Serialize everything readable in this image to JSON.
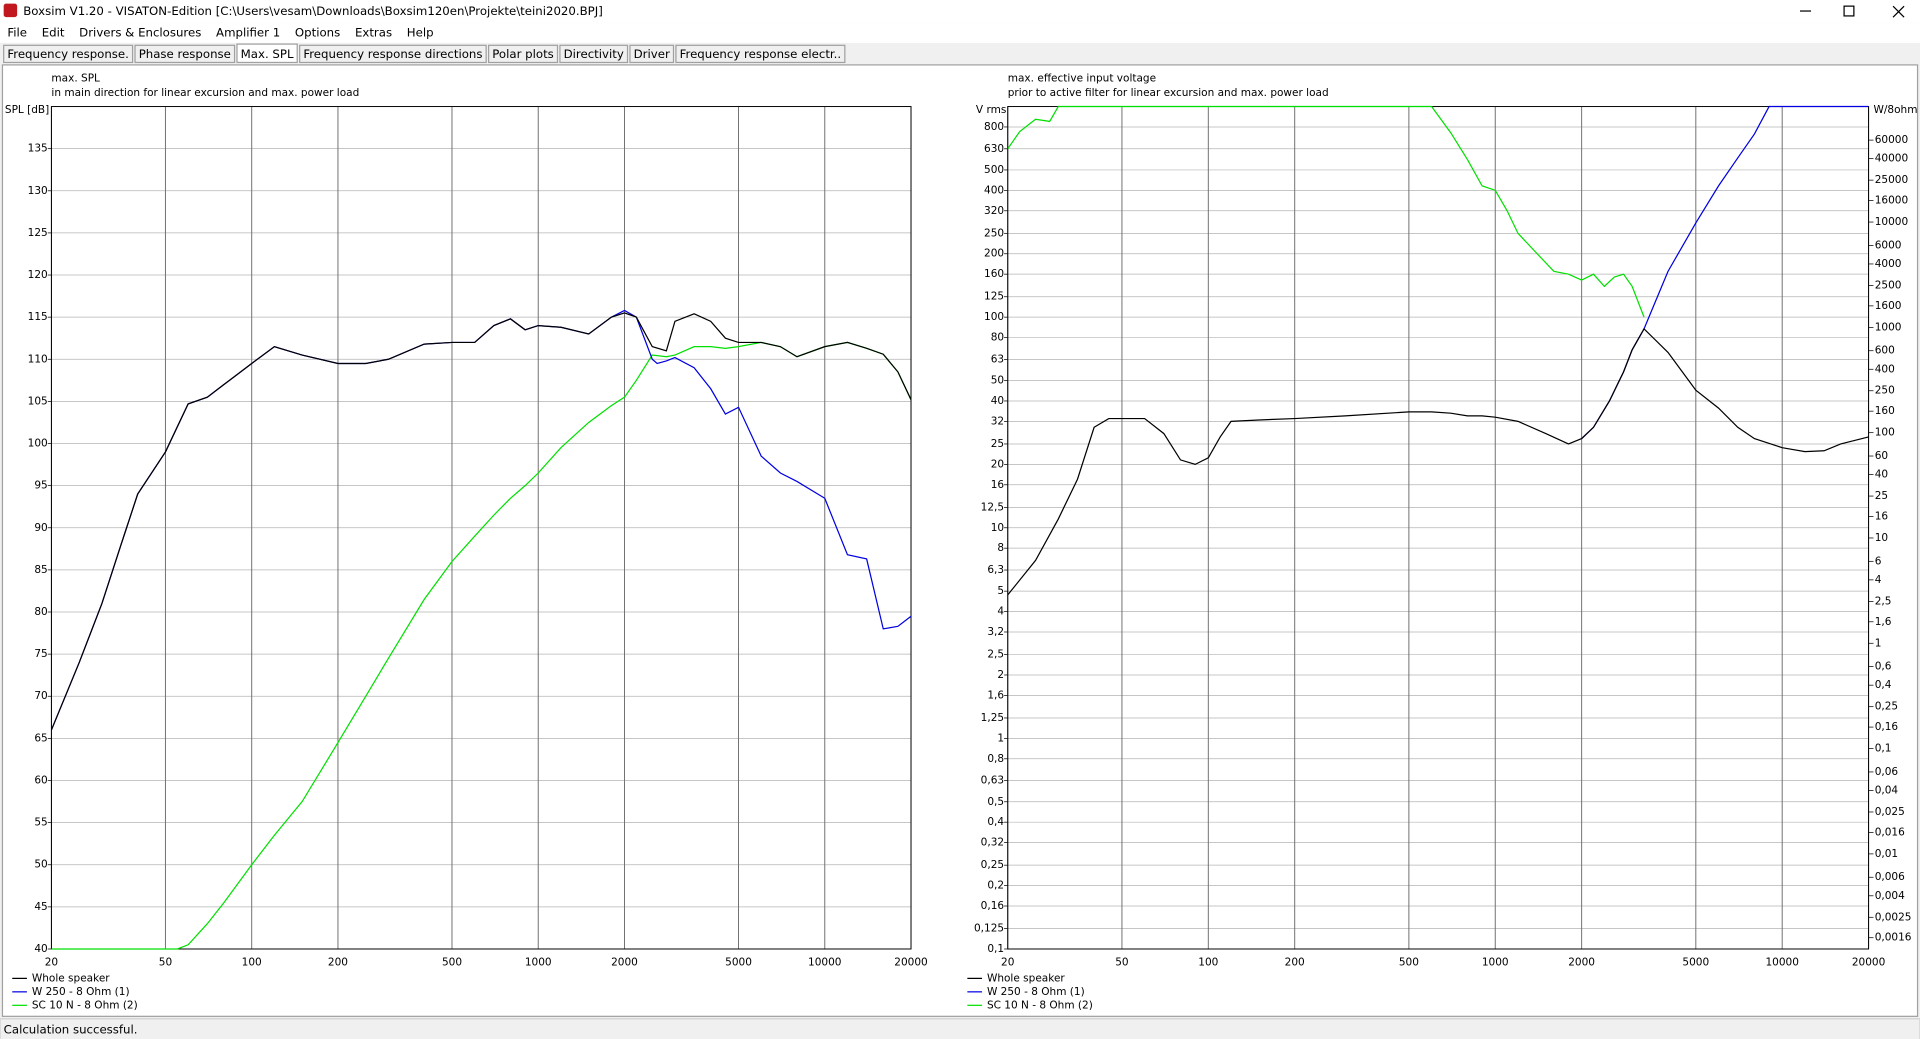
{
  "window": {
    "title": "Boxsim V1.20 - VISATON-Edition [C:\\Users\\vesam\\Downloads\\Boxsim120en\\Projekte\\teini2020.BPJ]"
  },
  "menu": [
    "File",
    "Edit",
    "Drivers & Enclosures",
    "Amplifier 1",
    "Options",
    "Extras",
    "Help"
  ],
  "tabs": [
    "Frequency response.",
    "Phase response",
    "Max. SPL",
    "Frequency response directions",
    "Polar plots",
    "Directivity",
    "Driver",
    "Frequency response electr.."
  ],
  "active_tab": 2,
  "chart_data": [
    {
      "type": "line",
      "title": "max. SPL",
      "subtitle": "in main direction for linear excursion and max. power load",
      "ylabel": "SPL [dB]",
      "xscale": "log",
      "xlim": [
        20,
        20000
      ],
      "xticks": [
        20,
        50,
        100,
        200,
        500,
        1000,
        2000,
        5000,
        10000,
        20000
      ],
      "yscale": "linear",
      "ylim": [
        40,
        140
      ],
      "yticks": [
        40,
        45,
        50,
        55,
        60,
        65,
        70,
        75,
        80,
        85,
        90,
        95,
        100,
        105,
        110,
        115,
        120,
        125,
        130,
        135
      ],
      "grid": true,
      "legend": "lower left",
      "series": [
        {
          "name": "SC 10 N - 8 Ohm (2)",
          "color": "#00e000",
          "x": [
            20,
            50,
            55,
            60,
            70,
            80,
            100,
            120,
            150,
            200,
            250,
            300,
            400,
            500,
            600,
            700,
            800,
            900,
            1000,
            1200,
            1500,
            1800,
            2000,
            2200,
            2500,
            2800,
            3000,
            3500,
            4000,
            4500,
            5000,
            6000,
            7000,
            8000,
            10000,
            12000,
            14000,
            16000,
            18000,
            20000
          ],
          "values": [
            40,
            40,
            40,
            40.5,
            43,
            45.5,
            50,
            53.5,
            57.5,
            64.5,
            70,
            74.5,
            81.5,
            86,
            89,
            91.5,
            93.5,
            95,
            96.5,
            99.5,
            102.5,
            104.5,
            105.5,
            107.5,
            110.5,
            110.3,
            110.5,
            111.5,
            111.5,
            111.3,
            111.5,
            112,
            111.5,
            110.3,
            111.5,
            112,
            111.3,
            110.6,
            108.5,
            105.2
          ]
        },
        {
          "name": "W 250 - 8 Ohm (1)",
          "color": "#0000e0",
          "x": [
            20,
            25,
            30,
            35,
            40,
            50,
            60,
            70,
            80,
            100,
            120,
            150,
            200,
            250,
            300,
            400,
            500,
            600,
            700,
            800,
            900,
            1000,
            1200,
            1500,
            1800,
            2000,
            2200,
            2500,
            2600,
            2800,
            3000,
            3500,
            4000,
            4500,
            5000,
            6000,
            7000,
            8000,
            10000,
            12000,
            14000,
            16000,
            18000,
            20000
          ],
          "values": [
            66,
            74,
            81,
            88,
            94,
            99,
            104.7,
            105.5,
            107,
            109.5,
            111.5,
            110.5,
            109.5,
            109.5,
            110,
            111.8,
            112,
            112,
            114,
            114.8,
            113.5,
            114,
            113.8,
            113,
            115,
            115.8,
            115,
            110,
            109.5,
            109.8,
            110.2,
            109,
            106.5,
            103.5,
            104.3,
            98.5,
            96.5,
            95.5,
            93.5,
            86.8,
            86.3,
            78,
            78.3,
            79.5
          ]
        },
        {
          "name": "Whole speaker",
          "color": "#000000",
          "x": [
            20,
            25,
            30,
            35,
            40,
            50,
            60,
            70,
            80,
            100,
            120,
            150,
            200,
            250,
            300,
            400,
            500,
            600,
            700,
            800,
            900,
            1000,
            1200,
            1500,
            1800,
            2000,
            2200,
            2500,
            2800,
            3000,
            3500,
            4000,
            4500,
            5000,
            6000,
            7000,
            8000,
            10000,
            12000,
            14000,
            16000,
            18000,
            20000
          ],
          "values": [
            66,
            74,
            81,
            88,
            94,
            99,
            104.7,
            105.5,
            107,
            109.5,
            111.5,
            110.5,
            109.5,
            109.5,
            110,
            111.8,
            112,
            112,
            114,
            114.8,
            113.5,
            114,
            113.8,
            113,
            115,
            115.5,
            115,
            111.5,
            111,
            114.5,
            115.4,
            114.5,
            112.5,
            112,
            112,
            111.5,
            110.3,
            111.5,
            112,
            111.3,
            110.6,
            108.5,
            105.2
          ]
        }
      ]
    },
    {
      "type": "line",
      "title": "max. effective input voltage",
      "subtitle": "prior to active filter for linear excursion and max. power load",
      "ylabel": "V rms",
      "y2label": "W/8ohm",
      "xscale": "log",
      "xlim": [
        20,
        20000
      ],
      "xticks": [
        20,
        50,
        100,
        200,
        500,
        1000,
        2000,
        5000,
        10000,
        20000
      ],
      "yscale": "log",
      "ylim": [
        0.1,
        1000
      ],
      "yticks": [
        {
          "value": 0.1,
          "label": "0,1"
        },
        {
          "value": 0.125,
          "label": "0,125"
        },
        {
          "value": 0.16,
          "label": "0,16"
        },
        {
          "value": 0.2,
          "label": "0,2"
        },
        {
          "value": 0.25,
          "label": "0,25"
        },
        {
          "value": 0.32,
          "label": "0,32"
        },
        {
          "value": 0.4,
          "label": "0,4"
        },
        {
          "value": 0.5,
          "label": "0,5"
        },
        {
          "value": 0.63,
          "label": "0,63"
        },
        {
          "value": 0.8,
          "label": "0,8"
        },
        1,
        {
          "value": 1.25,
          "label": "1,25"
        },
        {
          "value": 1.6,
          "label": "1,6"
        },
        2,
        {
          "value": 2.5,
          "label": "2,5"
        },
        {
          "value": 3.2,
          "label": "3,2"
        },
        4,
        5,
        {
          "value": 6.3,
          "label": "6,3"
        },
        8,
        10,
        {
          "value": 12.5,
          "label": "12,5"
        },
        16,
        20,
        25,
        32,
        40,
        50,
        63,
        80,
        100,
        125,
        160,
        200,
        250,
        320,
        400,
        500,
        630,
        800
      ],
      "y2lim": [
        0.00125,
        125000
      ],
      "y2ticks": [
        {
          "value": 0.0016,
          "label": "0,0016"
        },
        {
          "value": 0.0025,
          "label": "0,0025"
        },
        {
          "value": 0.004,
          "label": "0,004"
        },
        {
          "value": 0.006,
          "label": "0,006"
        },
        {
          "value": 0.01,
          "label": "0,01"
        },
        {
          "value": 0.016,
          "label": "0,016"
        },
        {
          "value": 0.025,
          "label": "0,025"
        },
        {
          "value": 0.04,
          "label": "0,04"
        },
        {
          "value": 0.06,
          "label": "0,06"
        },
        {
          "value": 0.1,
          "label": "0,1"
        },
        {
          "value": 0.16,
          "label": "0,16"
        },
        {
          "value": 0.25,
          "label": "0,25"
        },
        {
          "value": 0.4,
          "label": "0,4"
        },
        {
          "value": 0.6,
          "label": "0,6"
        },
        1,
        {
          "value": 1.6,
          "label": "1,6"
        },
        {
          "value": 2.5,
          "label": "2,5"
        },
        4,
        6,
        10,
        16,
        25,
        40,
        60,
        100,
        160,
        250,
        400,
        600,
        1000,
        1600,
        2500,
        4000,
        6000,
        10000,
        16000,
        25000,
        40000,
        60000
      ],
      "grid": true,
      "legend": "lower left",
      "series": [
        {
          "name": "SC 10 N - 8 Ohm (2)",
          "color": "#00e000",
          "x": [
            20,
            22,
            25,
            28,
            30,
            600,
            700,
            800,
            900,
            1000,
            1100,
            1200,
            1400,
            1600,
            1800,
            2000,
            2200,
            2400,
            2600,
            2800,
            3000,
            3300
          ],
          "values": [
            630,
            760,
            870,
            850,
            1000,
            1000,
            750,
            560,
            420,
            400,
            320,
            250,
            200,
            165,
            160,
            150,
            160,
            140,
            155,
            160,
            140,
            100
          ]
        },
        {
          "name": "W 250 - 8 Ohm (1)",
          "color": "#0000e0",
          "x": [
            2000,
            2200,
            2500,
            2800,
            3000,
            3300,
            4000,
            5000,
            6000,
            7000,
            8000,
            9000,
            20000
          ],
          "values": [
            26.5,
            30,
            40,
            55,
            70,
            88,
            165,
            280,
            420,
            570,
            740,
            1000,
            1000
          ]
        },
        {
          "name": "Whole speaker",
          "color": "#000000",
          "x": [
            20,
            25,
            30,
            35,
            40,
            45,
            50,
            60,
            70,
            80,
            90,
            100,
            110,
            120,
            150,
            200,
            300,
            500,
            600,
            700,
            800,
            900,
            1000,
            1200,
            1500,
            1800,
            2000,
            2200,
            2500,
            2800,
            3000,
            3300,
            4000,
            5000,
            6000,
            7000,
            8000,
            10000,
            12000,
            14000,
            16000,
            20000
          ],
          "values": [
            4.8,
            7,
            11,
            17,
            30,
            33,
            33,
            33,
            28,
            21,
            20,
            21.5,
            27,
            32,
            32.5,
            33,
            34,
            35.5,
            35.5,
            35,
            34,
            34,
            33.5,
            32,
            28,
            25,
            26.5,
            30,
            40,
            55,
            70,
            88,
            68,
            45,
            37,
            30,
            26.5,
            24,
            23,
            23.2,
            25,
            27
          ]
        }
      ]
    }
  ],
  "status": "Calculation successful."
}
